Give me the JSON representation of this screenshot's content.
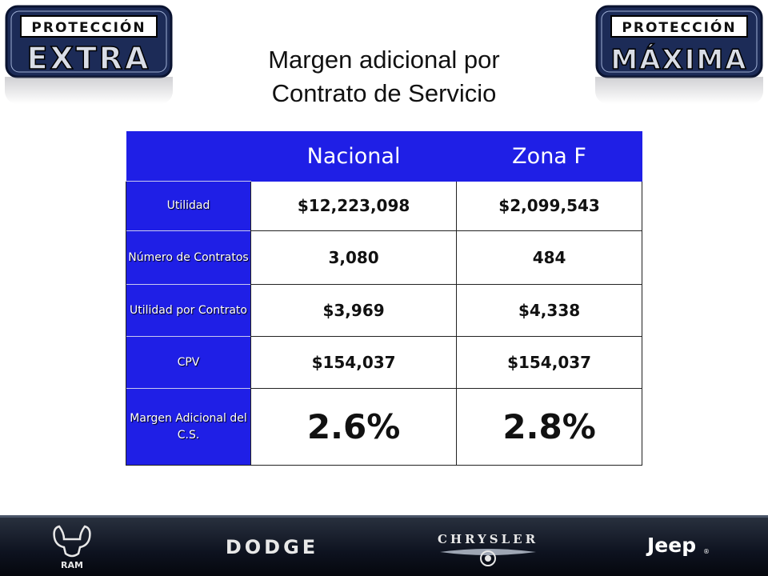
{
  "logos": {
    "left": {
      "top": "PROTECCIÓN",
      "bottom": "EXTRA"
    },
    "right": {
      "top": "PROTECCIÓN",
      "bottom": "MÁXIMA"
    }
  },
  "title": {
    "line1": "Margen adicional por",
    "line2": "Contrato de Servicio"
  },
  "table": {
    "headers": [
      "",
      "Nacional",
      "Zona F"
    ],
    "rows": [
      {
        "label": "Utilidad",
        "nacional": "$12,223,098",
        "zona_f": "$2,099,543"
      },
      {
        "label": "Número de Contratos",
        "nacional": "3,080",
        "zona_f": "484"
      },
      {
        "label": "Utilidad por Contrato",
        "nacional": "$3,969",
        "zona_f": "$4,338"
      },
      {
        "label": "CPV",
        "nacional": "$154,037",
        "zona_f": "$154,037"
      },
      {
        "label": "Margen Adicional del C.S.",
        "nacional": "2.6%",
        "zona_f": "2.8%"
      }
    ]
  },
  "footer": {
    "brands": [
      "RAM",
      "DODGE",
      "CHRYSLER",
      "Jeep"
    ]
  }
}
